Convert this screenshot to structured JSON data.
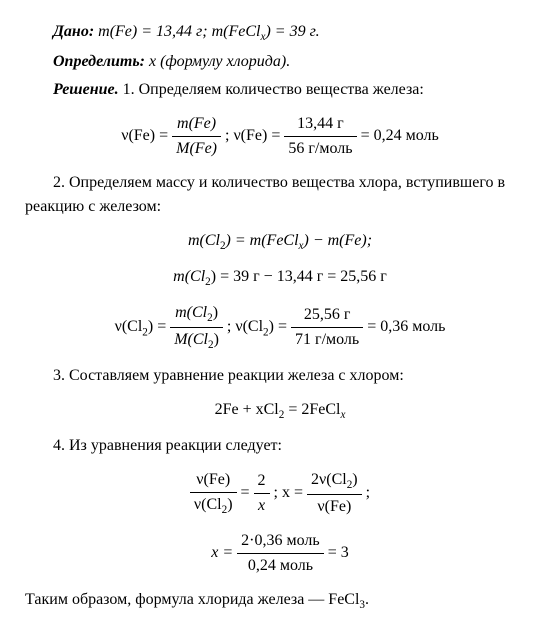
{
  "dano_label": "Дано:",
  "dano_text": " m(Fe) = 13,44 г; m(FeCl",
  "dano_text2": ") = 39 г.",
  "opred_label": "Определить:",
  "opred_text": " x (формулу хлорида).",
  "resh_label": "Решение.",
  "step1_text": " 1. Определяем количество вещества железа:",
  "f1_lhs": "ν(Fe) = ",
  "f1_num": "m(Fe)",
  "f1_den": "M(Fe)",
  "f1_sep": " ;  ν(Fe) = ",
  "f1_num2": "13,44 г",
  "f1_den2": "56 г/моль",
  "f1_rhs": " = 0,24 моль",
  "step2_text": "2. Определяем массу и количество вещества хлора, вступившего в реакцию с железом:",
  "f2a_lhs": "m(Cl",
  "f2a_mid": ") = m(FeCl",
  "f2a_rhs": ") − m(Fe);",
  "f2b_lhs": "m(Cl",
  "f2b_rhs": ") = 39 г − 13,44 г = 25,56 г",
  "f2c_lhs": "ν(Cl",
  "f2c_eq": ") = ",
  "f2c_num": "m(Cl",
  "f2c_num_end": ")",
  "f2c_den": "M(Cl",
  "f2c_den_end": ")",
  "f2c_sep": " ;  ν(Cl",
  "f2c_eq2": ") = ",
  "f2c_num2": "25,56 г",
  "f2c_den2": "71 г/моль",
  "f2c_rhs": " = 0,36 моль",
  "step3_text": "3. Составляем уравнение реакции железа с хлором:",
  "f3": "2Fe + xCl",
  "f3_mid": " = 2FeCl",
  "step4_text": "4. Из уравнения реакции следует:",
  "f4a_num1": "ν(Fe)",
  "f4a_den1_a": "ν(Cl",
  "f4a_den1_b": ")",
  "f4a_eq": " = ",
  "f4a_num2": "2",
  "f4a_den2": "x",
  "f4a_sep": " ;  x = ",
  "f4a_num3_a": "2ν(Cl",
  "f4a_num3_b": ")",
  "f4a_den3": "ν(Fe)",
  "f4a_end": " ;",
  "f4b_lhs": "x = ",
  "f4b_num": "2·0,36 моль",
  "f4b_den": "0,24 моль",
  "f4b_rhs": " = 3",
  "conclusion": "Таким образом, формула хлорида железа — FeCl",
  "conclusion_end": ".",
  "sub_x": "x",
  "sub_2": "2",
  "sub_3": "3"
}
